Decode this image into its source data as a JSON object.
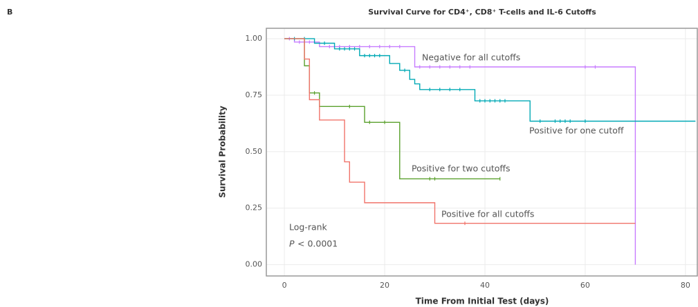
{
  "panel_label": "B",
  "chart_data": {
    "type": "km",
    "title": "Survival Curve for CD4⁺, CD8⁺ T-cells and IL-6 Cutoffs",
    "x_label": "Time From Initial Test (days)",
    "y_label": "Survival Probability",
    "xlim": [
      -3.6,
      82.5
    ],
    "ylim": [
      -0.05,
      1.046
    ],
    "xticks": [
      0,
      20,
      40,
      60,
      80
    ],
    "yticks": [
      {
        "value": 0,
        "label": "0.00"
      },
      {
        "value": 0.25,
        "label": "0.25"
      },
      {
        "value": 0.5,
        "label": "0.50"
      },
      {
        "value": 0.75,
        "label": "0.75"
      },
      {
        "value": 1,
        "label": "1.00"
      }
    ],
    "grid": true,
    "annotations": {
      "test": "Log-rank",
      "p_symbol": "P",
      "p_value": "< 0.0001"
    },
    "series": [
      {
        "name": "Negative for all cutoffs",
        "color": "#c77cff",
        "x": [
          0,
          2,
          7,
          26,
          70
        ],
        "y": [
          1,
          0.985,
          0.965,
          0.875,
          0
        ],
        "censor_x": [
          1,
          3,
          4,
          5,
          9,
          11,
          13,
          15,
          17,
          19,
          21,
          23,
          27,
          29,
          31,
          33,
          35,
          37,
          60,
          62
        ],
        "censor_y": [
          1,
          0.985,
          0.985,
          0.985,
          0.965,
          0.965,
          0.965,
          0.965,
          0.965,
          0.965,
          0.965,
          0.965,
          0.875,
          0.875,
          0.875,
          0.875,
          0.875,
          0.875,
          0.875,
          0.875
        ]
      },
      {
        "name": "Positive for one cutoff",
        "color": "#00a9b5",
        "x": [
          0,
          6,
          10,
          15,
          21,
          23,
          25,
          26,
          27,
          38,
          49,
          82
        ],
        "y": [
          1,
          0.98,
          0.955,
          0.925,
          0.89,
          0.86,
          0.82,
          0.8,
          0.775,
          0.725,
          0.635,
          0.635
        ],
        "censor_x": [
          2,
          4,
          8,
          11,
          12,
          13,
          14,
          16,
          17,
          18,
          19,
          24,
          29,
          31,
          33,
          35,
          39,
          40,
          41,
          42,
          43,
          44,
          51,
          54,
          55,
          56,
          57,
          60
        ],
        "censor_y": [
          1,
          1,
          0.98,
          0.955,
          0.955,
          0.955,
          0.955,
          0.925,
          0.925,
          0.925,
          0.925,
          0.86,
          0.775,
          0.775,
          0.775,
          0.775,
          0.725,
          0.725,
          0.725,
          0.725,
          0.725,
          0.725,
          0.635,
          0.635,
          0.635,
          0.635,
          0.635,
          0.635
        ]
      },
      {
        "name": "Positive for two cutoffs",
        "color": "#5aa02c",
        "x": [
          0,
          4,
          5,
          7,
          16,
          23,
          43
        ],
        "y": [
          1,
          0.88,
          0.76,
          0.7,
          0.63,
          0.38,
          0.38
        ],
        "censor_x": [
          6,
          13,
          17,
          20,
          29,
          30,
          43
        ],
        "censor_y": [
          0.76,
          0.7,
          0.63,
          0.63,
          0.38,
          0.38,
          0.38
        ]
      },
      {
        "name": "Positive for all cutoffs",
        "color": "#f0736a",
        "x": [
          0,
          4,
          5,
          7,
          12,
          13,
          16,
          30,
          70
        ],
        "y": [
          1,
          0.91,
          0.73,
          0.64,
          0.455,
          0.365,
          0.274,
          0.183,
          0.183
        ],
        "censor_x": [
          36
        ],
        "censor_y": [
          0.183
        ]
      }
    ]
  }
}
